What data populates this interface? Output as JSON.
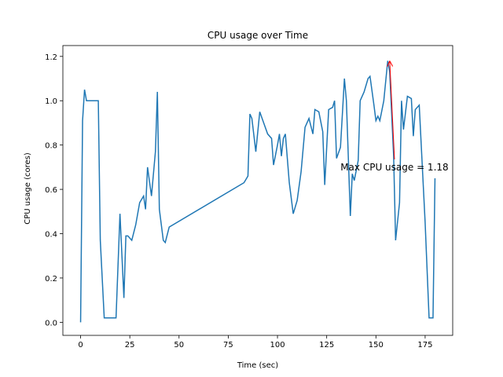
{
  "chart_data": {
    "type": "line",
    "title": "CPU usage over Time",
    "x_label": "Time (sec)",
    "y_label": "CPU usage (cores)",
    "x": [
      0,
      1,
      2,
      3,
      5,
      8,
      9,
      10,
      12,
      14,
      16,
      18,
      20,
      22,
      23,
      24,
      26,
      28,
      30,
      32,
      33,
      34,
      36,
      38,
      39,
      40,
      42,
      43,
      45,
      83,
      85,
      86,
      87,
      89,
      91,
      93,
      95,
      97,
      98,
      100,
      101,
      102,
      103,
      104,
      106,
      108,
      110,
      112,
      114,
      116,
      118,
      119,
      121,
      123,
      124,
      126,
      128,
      129,
      130,
      132,
      134,
      135,
      137,
      138,
      139,
      141,
      142,
      144,
      146,
      147,
      149,
      150,
      151,
      152,
      154,
      156,
      157,
      159,
      160,
      162,
      163,
      164,
      166,
      168,
      169,
      170,
      172,
      175,
      177,
      179,
      180
    ],
    "series": [
      {
        "color": "#1f77b4",
        "values": [
          0.0,
          0.91,
          1.05,
          1.0,
          1.0,
          1.0,
          1.0,
          0.37,
          0.02,
          0.02,
          0.02,
          0.02,
          0.49,
          0.11,
          0.39,
          0.39,
          0.37,
          0.44,
          0.54,
          0.57,
          0.51,
          0.7,
          0.57,
          0.77,
          1.04,
          0.51,
          0.37,
          0.36,
          0.43,
          0.63,
          0.66,
          0.94,
          0.92,
          0.77,
          0.95,
          0.9,
          0.85,
          0.83,
          0.71,
          0.8,
          0.85,
          0.75,
          0.83,
          0.85,
          0.63,
          0.49,
          0.55,
          0.68,
          0.88,
          0.92,
          0.85,
          0.96,
          0.95,
          0.86,
          0.62,
          0.96,
          0.97,
          1.0,
          0.74,
          0.79,
          1.1,
          1.0,
          0.48,
          0.67,
          0.64,
          0.73,
          1.0,
          1.04,
          1.1,
          1.11,
          0.98,
          0.91,
          0.93,
          0.91,
          1.0,
          1.18,
          1.13,
          0.75,
          0.37,
          0.54,
          1.0,
          0.87,
          1.02,
          1.01,
          0.84,
          0.96,
          0.98,
          0.45,
          0.02,
          0.02,
          0.65
        ]
      }
    ],
    "xlim": [
      -9,
      189
    ],
    "ylim": [
      -0.059,
      1.249
    ],
    "xticks": [
      0,
      25,
      50,
      75,
      100,
      125,
      150,
      175
    ],
    "yticks": [
      {
        "value": 0,
        "label": "0.0"
      },
      {
        "value": 0.2,
        "label": "0.2"
      },
      {
        "value": 0.4,
        "label": "0.4"
      },
      {
        "value": 0.6,
        "label": "0.6"
      },
      {
        "value": 0.8,
        "label": "0.8"
      },
      {
        "value": 1.0,
        "label": "1.0"
      },
      {
        "value": 1.2,
        "label": "1.2"
      }
    ],
    "annotation": {
      "text": "Max CPU usage = 1.18",
      "xy": [
        157,
        1.18
      ],
      "xytext": [
        132,
        0.7
      ],
      "color": "red"
    }
  }
}
